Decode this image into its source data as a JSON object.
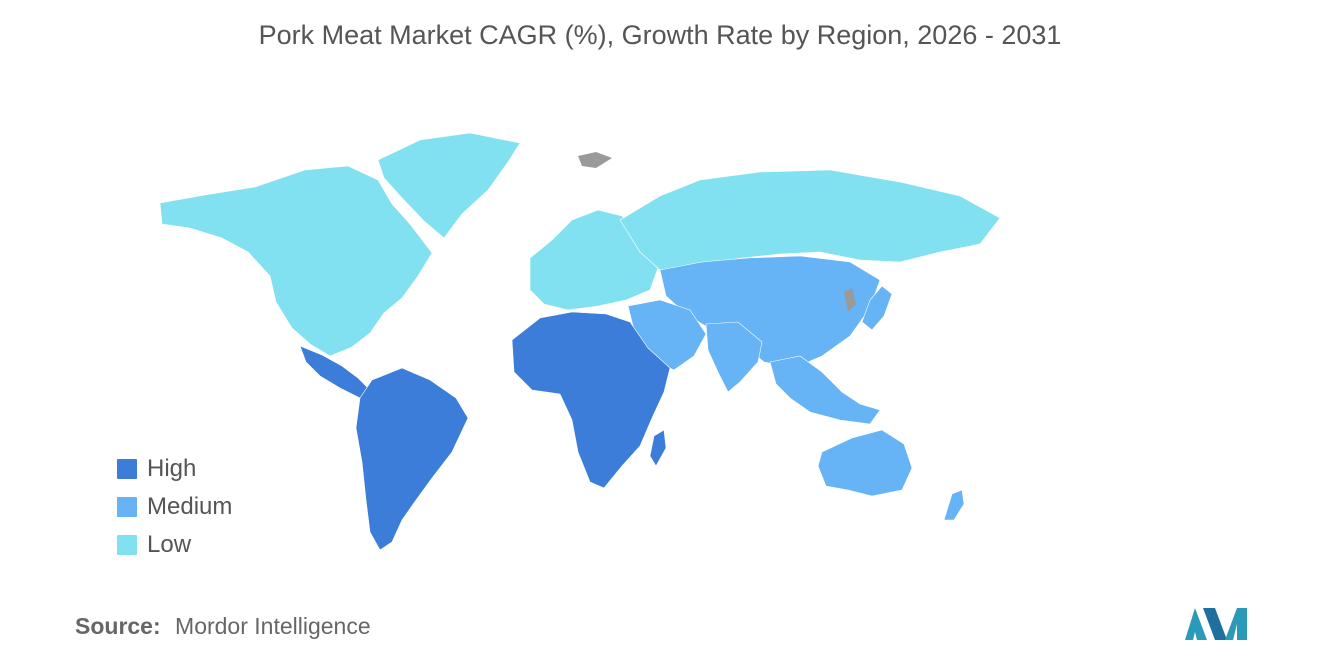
{
  "title": "Pork Meat Market CAGR (%), Growth Rate by Region, 2026 - 2031",
  "legend": [
    {
      "label": "High",
      "color": "#3b7dd8"
    },
    {
      "label": "Medium",
      "color": "#66b3f5"
    },
    {
      "label": "Low",
      "color": "#82e1f0"
    }
  ],
  "regions": {
    "north_america": "Low",
    "greenland": "Low",
    "europe": "Low",
    "russia": "Low",
    "central_asia": "Low",
    "asia_pacific": "Medium",
    "middle_east": "Medium",
    "india": "Medium",
    "southeast_asia": "Medium",
    "australia_nz": "Medium",
    "africa": "High",
    "south_america": "High",
    "central_america": "High"
  },
  "no_data_color": "#9a9a9a",
  "source": {
    "label": "Source:",
    "value": "Mordor Intelligence"
  },
  "logo_icon": "mordor-intelligence-logo-icon"
}
